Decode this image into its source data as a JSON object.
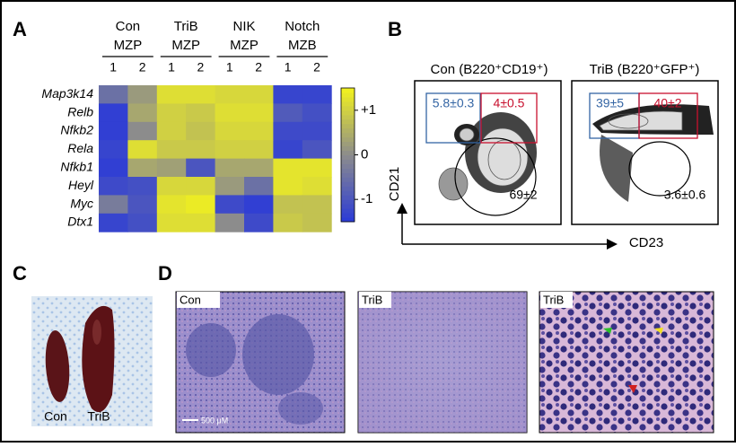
{
  "panel_letters": [
    "A",
    "B",
    "C",
    "D"
  ],
  "chart_data": {
    "type": "heatmap",
    "groups": [
      [
        "Con",
        "MZP"
      ],
      [
        "TriB",
        "MZP"
      ],
      [
        "NIK",
        "MZP"
      ],
      [
        "Notch",
        "MZB"
      ]
    ],
    "columns": [
      "1",
      "2",
      "1",
      "2",
      "1",
      "2",
      "1",
      "2"
    ],
    "rows": [
      "Map3k14",
      "Relb",
      "Nfkb2",
      "Rela",
      "Nfkb1",
      "Heyl",
      "Myc",
      "Dtx1"
    ],
    "values": [
      [
        -0.5,
        0.2,
        1.2,
        1.2,
        1.1,
        1.1,
        -1.3,
        -1.3
      ],
      [
        -1.4,
        0.4,
        1.0,
        0.9,
        1.2,
        1.2,
        -0.9,
        -1.1
      ],
      [
        -1.4,
        0.0,
        1.0,
        0.8,
        1.1,
        1.1,
        -1.2,
        -1.2
      ],
      [
        -1.3,
        1.2,
        0.9,
        0.9,
        1.0,
        1.0,
        -1.3,
        -1.0
      ],
      [
        -1.4,
        0.4,
        0.3,
        -1.0,
        0.4,
        0.4,
        1.3,
        1.3
      ],
      [
        -1.2,
        -1.1,
        1.1,
        1.1,
        0.2,
        -0.5,
        1.3,
        1.2
      ],
      [
        -0.3,
        -1.0,
        1.3,
        1.4,
        -1.2,
        -1.4,
        0.8,
        0.8
      ],
      [
        -1.3,
        -1.1,
        1.2,
        1.2,
        0.0,
        -1.2,
        0.9,
        0.8
      ]
    ],
    "colorbar_lim": [
      -1.5,
      1.5
    ],
    "colorbar_ticks": [
      {
        "value": 1,
        "label": "+1"
      },
      0,
      -1
    ],
    "colors": [
      "#2a3ad8",
      "#8c8c8c",
      "#f2f21e"
    ]
  },
  "flow": {
    "plots": [
      {
        "title": "Con (B220⁺CD19⁺)",
        "gates": [
          "5.8±0.3",
          "4±0.5",
          "69±2"
        ]
      },
      {
        "title": "TriB (B220⁺GFP⁺)",
        "gates": [
          "39±5",
          "40±2",
          "3.6±0.6"
        ]
      }
    ],
    "y_axis": "CD21",
    "x_axis": "CD23"
  },
  "spleens": {
    "labels": [
      "Con",
      "TriB"
    ]
  },
  "histology": {
    "labels": [
      "Con",
      "TriB",
      "TriB"
    ],
    "scale": "500 μM"
  }
}
